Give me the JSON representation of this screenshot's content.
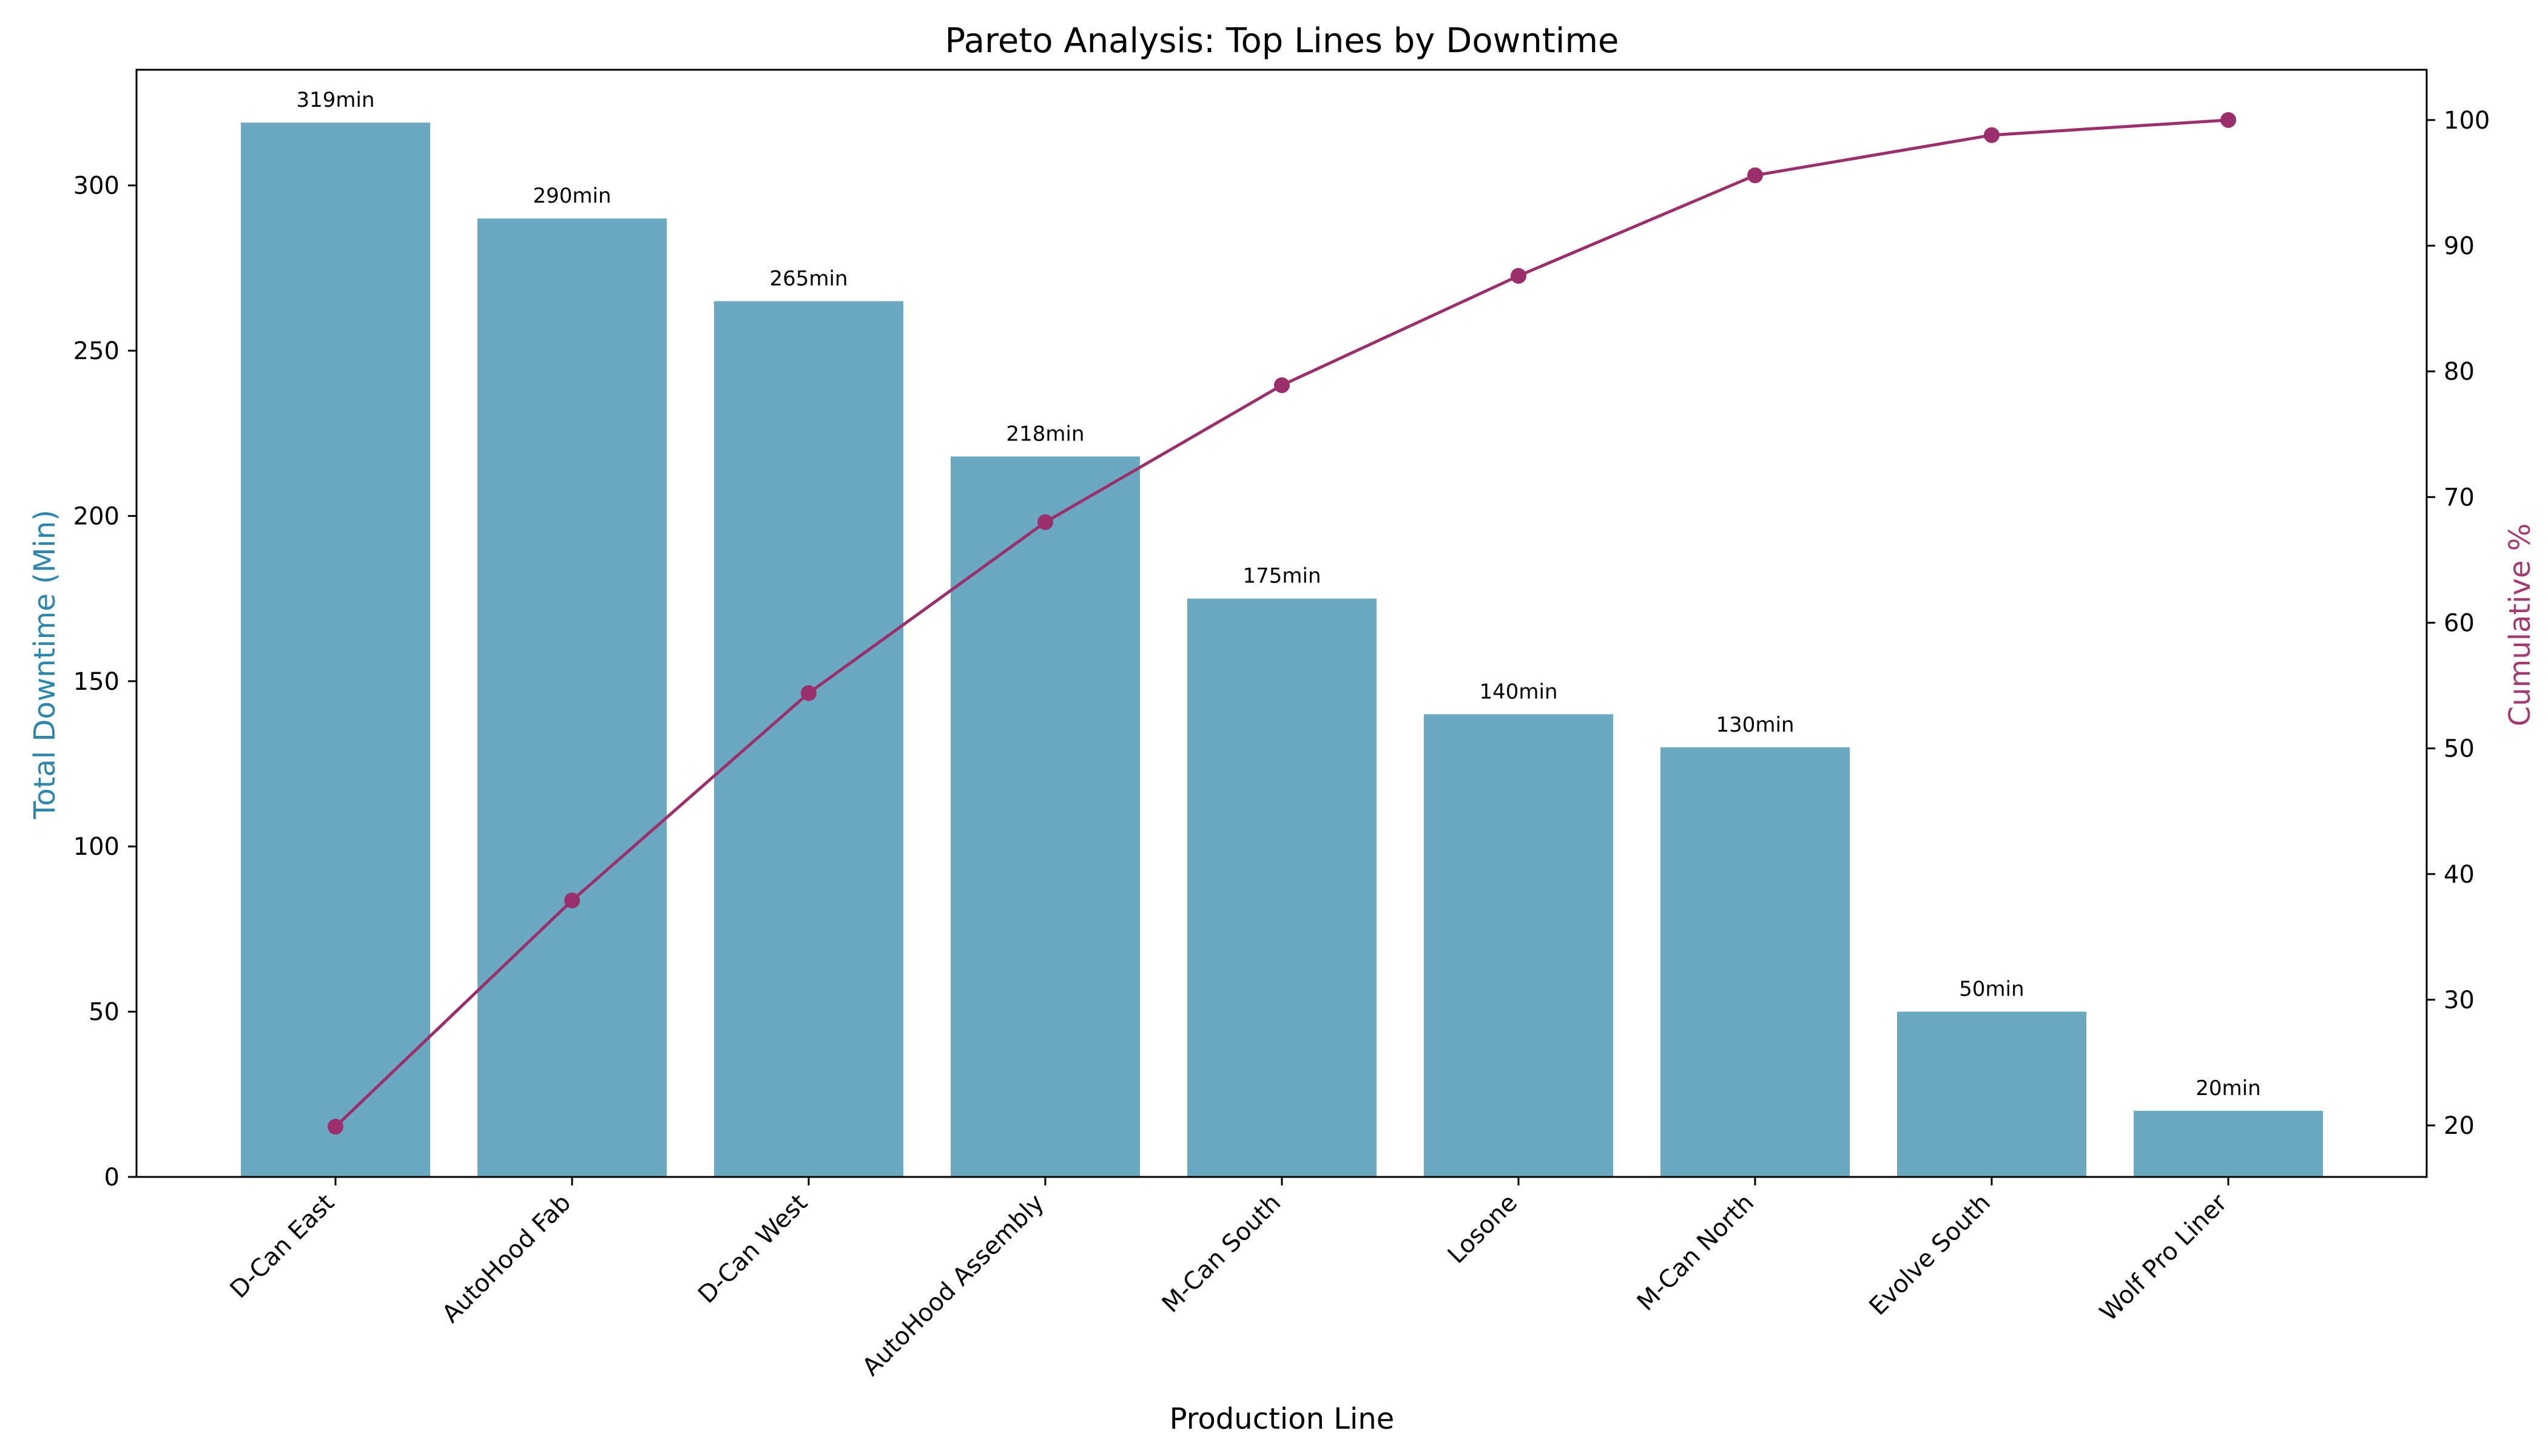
{
  "chart_data": {
    "type": "bar",
    "title": "Pareto Analysis: Top Lines by Downtime",
    "xlabel": "Production Line",
    "ylabel": "Total Downtime (Min)",
    "y2label": "Cumulative %",
    "categories": [
      "D-Can East",
      "AutoHood Fab",
      "D-Can West",
      "AutoHood Assembly",
      "M-Can South",
      "Losone",
      "M-Can North",
      "Evolve South",
      "Wolf Pro Liner"
    ],
    "series": [
      {
        "type": "bar",
        "axis": "left",
        "values": [
          319,
          290,
          265,
          218,
          175,
          140,
          130,
          50,
          20
        ],
        "color": "#6BA9C3"
      },
      {
        "type": "line",
        "axis": "right",
        "values": [
          19.9,
          37.9,
          54.4,
          68.0,
          78.9,
          87.6,
          95.6,
          98.8,
          100.0
        ],
        "color": "#9B2F6B"
      }
    ],
    "bar_labels": [
      "319min",
      "290min",
      "265min",
      "218min",
      "175min",
      "140min",
      "130min",
      "50min",
      "20min"
    ],
    "ylim": [
      0,
      335
    ],
    "y2lim": [
      15.9,
      104
    ],
    "yticks": [
      0,
      50,
      100,
      150,
      200,
      250,
      300
    ],
    "y2ticks": [
      20,
      30,
      40,
      50,
      60,
      70,
      80,
      90,
      100
    ],
    "ylabel_color": "#2E86AB",
    "y2label_color": "#A23B72",
    "grid": false
  }
}
